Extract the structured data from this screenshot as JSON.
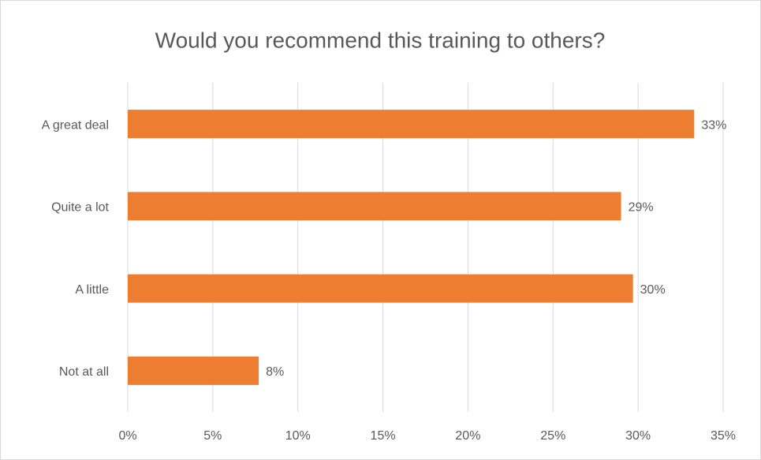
{
  "chart_data": {
    "type": "bar",
    "orientation": "horizontal",
    "title": "Would you recommend this training to others?",
    "categories": [
      "A great deal",
      "Quite a lot",
      "A little",
      "Not at all"
    ],
    "values": [
      33.3,
      29.0,
      29.7,
      7.7
    ],
    "value_labels": [
      "33%",
      "29%",
      "30%",
      "8%"
    ],
    "color": "#ed7d31",
    "xlim": [
      0,
      35
    ],
    "xticks": [
      {
        "value": 0,
        "label": "0%"
      },
      {
        "value": 5,
        "label": "5%"
      },
      {
        "value": 10,
        "label": "10%"
      },
      {
        "value": 15,
        "label": "15%"
      },
      {
        "value": 20,
        "label": "20%"
      },
      {
        "value": 25,
        "label": "25%"
      },
      {
        "value": 30,
        "label": "30%"
      },
      {
        "value": 35,
        "label": "35%"
      }
    ],
    "grid": true
  }
}
